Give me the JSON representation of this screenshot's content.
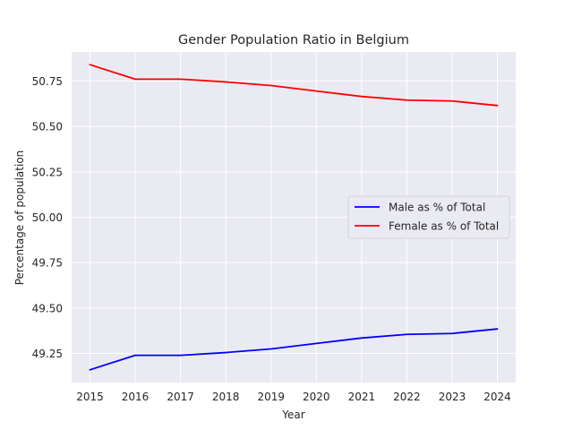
{
  "chart_data": {
    "type": "line",
    "title": "Gender Population Ratio in Belgium",
    "xlabel": "Year",
    "ylabel": "Percentage of population",
    "x": [
      2015,
      2016,
      2017,
      2018,
      2019,
      2020,
      2021,
      2022,
      2023,
      2024
    ],
    "xticks": [
      "2015",
      "2016",
      "2017",
      "2018",
      "2019",
      "2020",
      "2021",
      "2022",
      "2023",
      "2024"
    ],
    "yticks": [
      "49.25",
      "49.50",
      "49.75",
      "50.00",
      "50.25",
      "50.50",
      "50.75"
    ],
    "ylim": [
      49.09,
      50.91
    ],
    "grid": true,
    "legend_position": "center-right",
    "series": [
      {
        "name": "Male as % of Total",
        "color": "#0000ff",
        "values": [
          49.16,
          49.24,
          49.24,
          49.255,
          49.275,
          49.305,
          49.335,
          49.355,
          49.36,
          49.385
        ]
      },
      {
        "name": "Female as % of Total",
        "color": "#ff0000",
        "values": [
          50.84,
          50.76,
          50.76,
          50.745,
          50.725,
          50.695,
          50.665,
          50.645,
          50.64,
          50.615
        ]
      }
    ]
  }
}
